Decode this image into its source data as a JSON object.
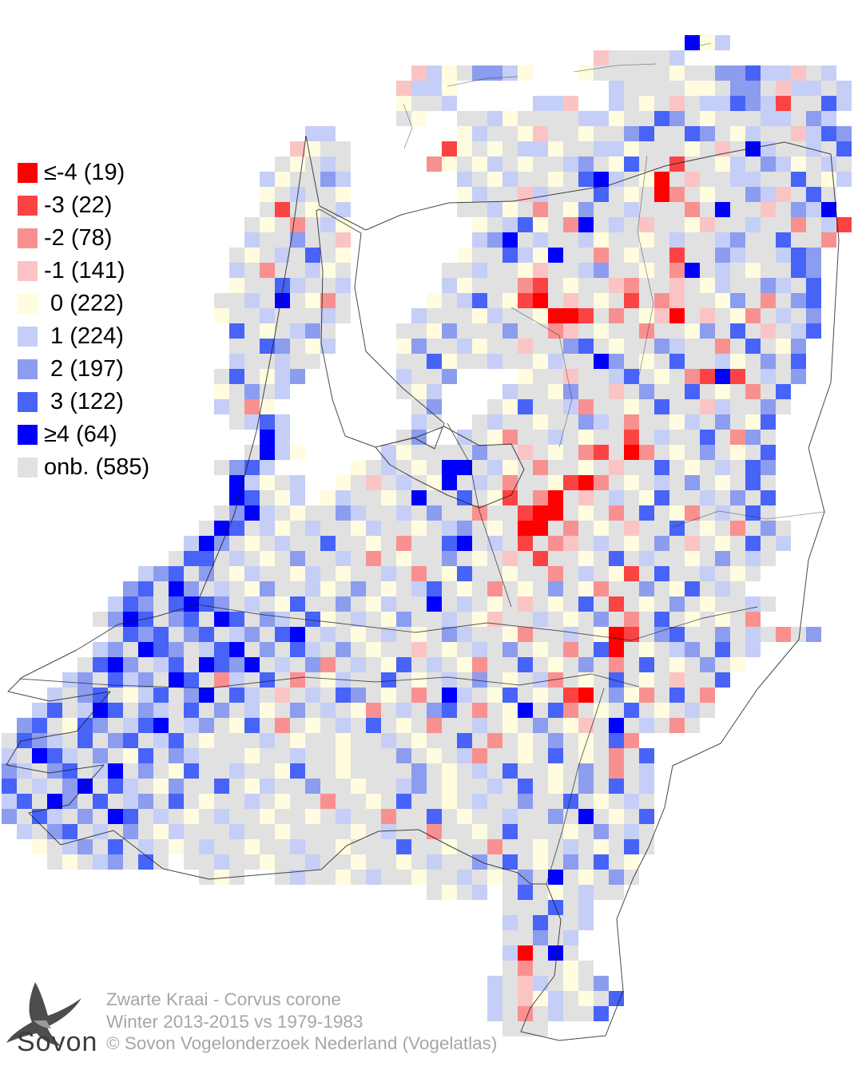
{
  "legend": {
    "items": [
      {
        "key": "R",
        "label": "≤-4 (19)",
        "color": "#FF0000"
      },
      {
        "key": "r",
        "label": "-3 (22)",
        "color": "#FB4343"
      },
      {
        "key": "q",
        "label": "-2 (78)",
        "color": "#F99090"
      },
      {
        "key": "p",
        "label": "-1 (141)",
        "color": "#FBC4C4"
      },
      {
        "key": "y",
        "label": " 0 (222)",
        "color": "#FFFCDF"
      },
      {
        "key": "c",
        "label": " 1 (224)",
        "color": "#C5CEF6"
      },
      {
        "key": "m",
        "label": " 2 (197)",
        "color": "#8C9CEF"
      },
      {
        "key": "b",
        "label": " 3 (122)",
        "color": "#4763F8"
      },
      {
        "key": "B",
        "label": "≥4 (64)",
        "color": "#0000FE"
      },
      {
        "key": "g",
        "label": "onb. (585)",
        "color": "#E1E1E1"
      }
    ]
  },
  "footer": {
    "logo_text": "Sovon",
    "line1": "Zwarte Kraai - Corvus corone",
    "line2": "Winter 2013-2015 vs 1979-1983",
    "line3": "© Sovon Vogelonderzoek Nederland (Vogelatlas)"
  },
  "map": {
    "grid": {
      "cell": 19,
      "ox": 2,
      "oy": 25,
      "rows": [
        [],
        [
          [
            45,
            "Byc"
          ]
        ],
        [
          [
            39,
            "pggggc"
          ]
        ],
        [
          [
            27,
            "pcygmmcy"
          ],
          [
            38,
            "ygggggyggmmbccpgc"
          ]
        ],
        [
          [
            26,
            "pccy"
          ],
          [
            40,
            "cggggyygmmgpccgc"
          ]
        ],
        [
          [
            26,
            "yggc"
          ],
          [
            35,
            "ccp"
          ],
          [
            40,
            "cgygpgccbmcrggbc"
          ]
        ],
        [
          [
            26,
            "gy"
          ],
          [
            30,
            "ggcyggggccyggbmgygggccgmc"
          ]
        ],
        [
          [
            20,
            "cc"
          ],
          [
            30,
            "ycggypggyggmbggbmgycggpcbm"
          ]
        ],
        [
          [
            19,
            "pygg"
          ],
          [
            29,
            "rygygccyggccygggygpgBcggcgb"
          ]
        ],
        [
          [
            18,
            "gygcg"
          ],
          [
            28,
            "qygycgyggcmgybggrggycgmcygcg"
          ]
        ],
        [
          [
            17,
            "cyggmc"
          ],
          [
            30,
            "cgycggygbBcgyRgpggccggbgyc"
          ]
        ],
        [
          [
            17,
            "ygcggy"
          ],
          [
            30,
            "ycggpcgggbgygRqgyggmcpgbg"
          ]
        ],
        [
          [
            17,
            "grgygc"
          ],
          [
            30,
            "ggcygqgymggcgggqgBggpgmcB"
          ]
        ],
        [
          [
            16,
            "gygqgcy"
          ],
          [
            31,
            "ygcbygqBgcgpggypggcggqgcr"
          ]
        ],
        [
          [
            16,
            "cggmggp"
          ],
          [
            31,
            "cmBgcggcyggygcggcmggbggq"
          ]
        ],
        [
          [
            15,
            "gygcgbgy"
          ],
          [
            30,
            "yggbcyBggqgyggrggmcggcbm"
          ]
        ],
        [
          [
            15,
            "cgqggcyg"
          ],
          [
            29,
            "ggc"
          ],
          [
            32,
            "ggypggcmggygqBgcgyggbm"
          ]
        ],
        [
          [
            15,
            "yggbcggc"
          ],
          [
            29,
            "cygg"
          ],
          [
            33,
            "gqrgyggpqggpgycggmcgb"
          ]
        ],
        [
          [
            14,
            "ggcgBgyqg"
          ],
          [
            28,
            "ygcb"
          ],
          [
            32,
            "gyrRgpgygrgqpggymgqgmb"
          ]
        ],
        [
          [
            14,
            "yggcgggcg"
          ],
          [
            27,
            "cgggy"
          ],
          [
            32,
            "cggyRRrgqgypRgpgyqgcgm"
          ]
        ],
        [
          [
            15,
            "bgygcmg"
          ],
          [
            26,
            "ggymggg"
          ],
          [
            33,
            "mggqpgyggqggymgbgpgcb"
          ]
        ],
        [
          [
            15,
            "ggbmgyc"
          ],
          [
            26,
            "ymggcygg"
          ],
          [
            34,
            "pggmbgyggmcggqgbgym"
          ]
        ],
        [
          [
            15,
            "cggcgg"
          ],
          [
            26,
            "ggbyggcg"
          ],
          [
            34,
            "gycggBmgygbggcygmgb"
          ]
        ],
        [
          [
            14,
            "gbgycm"
          ],
          [
            26,
            "cggm"
          ],
          [
            34,
            "yggpggcbgygqrBrgcgm"
          ]
        ],
        [
          [
            14,
            "ygmgc"
          ],
          [
            26,
            "gyc"
          ],
          [
            33,
            "cggymggpgmggbgygqgb"
          ]
        ],
        [
          [
            14,
            "cgqy"
          ],
          [
            27,
            "gm"
          ],
          [
            32,
            "gybggcqggygbggpcggmg"
          ]
        ],
        [
          [
            15,
            "gcbc"
          ],
          [
            27,
            "cg"
          ],
          [
            31,
            "gcggyggmcgqggycgmgyb"
          ]
        ],
        [
          [
            17,
            "Bc"
          ],
          [
            26,
            "gm"
          ],
          [
            30,
            "cgyqggcgyggrgcggbgqmg"
          ]
        ],
        [
          [
            16,
            "gBcy"
          ],
          [
            25,
            "cygg"
          ],
          [
            29,
            "ggmggpgygqrgRqgygmgygb"
          ]
        ],
        [
          [
            14,
            "gmbc"
          ],
          [
            23,
            "ygcgyg"
          ],
          [
            29,
            "BBgcygqggygpggbgygcgbm"
          ]
        ],
        [
          [
            15,
            "Bcygc"
          ],
          [
            22,
            "ygpgcgy"
          ],
          [
            29,
            "BgcgqggyrRqgygcgmgygbg"
          ]
        ],
        [
          [
            15,
            "Bbgyc"
          ],
          [
            21,
            "ycggygBggbgyrgqRgpgcgybggcgmgb"
          ]
        ],
        [
          [
            14,
            "gmBcgy"
          ],
          [
            20,
            "ggmcggcgmggqggrRRgygqgbgyqgcgbg"
          ]
        ],
        [
          [
            13,
            "gBbgcyg"
          ],
          [
            20,
            "cggycggygcmgygRRgqgygpggbgygqgmg"
          ]
        ],
        [
          [
            12,
            "cBmgyg"
          ],
          [
            18,
            "cggbggygqggbBgcgrgqpgcgygmgpgygbgc"
          ]
        ],
        [
          [
            11,
            "gbbgc"
          ],
          [
            16,
            "gygmggcgqgyggmgygpgrggygbgcggygmgcg"
          ]
        ],
        [
          [
            9,
            "cmbgm"
          ],
          [
            14,
            "gycggycgyggcgqgybggyggqgcgyrgbggcgyg"
          ]
        ],
        [
          [
            8,
            "mbgBm"
          ],
          [
            13,
            "gcgymggcygmgygcbgygqgygmgyqggmgybgcg"
          ]
        ],
        [
          [
            7,
            "cbmgbBbmgcgybggmgycggBgcgygpgygbgrgygmgyggcg"
          ]
        ],
        [
          [
            6,
            "gmBbgmbgBbgmcgbygcgymggcgypggcgygmgqgbgygygq"
          ]
        ],
        [
          [
            7,
            "gbmbgmbgcmgbBgcgygcgygmcggyqggcgyRrgmbggmgcgqgm"
          ]
        ],
        [
          [
            6,
            "cmgBbmgcbBgmgbcgmgyggpgygcgmgygqgbRgygcmgbgc"
          ]
        ],
        [
          [
            5,
            "gbBmgcbgBbmBgcgmqgcgybgcgyqggbgygmgqgbgygmgy"
          ]
        ],
        [
          [
            4,
            "cmgbcmgBbgqcgbgqgycggbgygcgmgygcqgygbgygpggb"
          ]
        ],
        [
          [
            3,
            "cgmbgycbgmBgbcgpgcgbmgygqgBcgybgygrRgmyqgbgq"
          ]
        ],
        [
          [
            2,
            "cbgcBbgmcgbgmgcygmgcgyqgcgmbgqgyBgbqgygbgygcg"
          ]
        ],
        [
          [
            1,
            "mbgybmgcbBgcmgybgqgygcgbgygqggcgygmgypgBgcgqg"
          ]
        ],
        [
          [
            0,
            "gbmcgbgmbgcbgygggcgyggyggcgyggbgqgygmgygbq"
          ]
        ],
        [
          [
            0,
            "cgBbcgmgybgmcgggyggcggygggmgygcqggygbgygqgb"
          ]
        ],
        [
          [
            0,
            "mcgmbgcBgmgybggcggybggyggggmgygcgbggygmgqgc"
          ]
        ],
        [
          [
            0,
            "bgcgmBgbcgymggbgycggmggyggcmgyggcgbgygmgbgc"
          ]
        ],
        [
          [
            0,
            "cbgBmgbgcmgbgyggcgyggqggygbggygcggmggbgygcg"
          ]
        ],
        [
          [
            0,
            "mgbcgmgBbgcgygcggyggygcggqggbgyggcggmgBgygb"
          ]
        ],
        [
          [
            1,
            "cgmbgcgmgycgggcggyggggygcggqggygbgggygmgcg"
          ]
        ],
        [
          [
            2,
            "ygcmgbgcgygcggyggcggygggbggyggqggygcgygbg"
          ]
        ],
        [
          [
            3,
            "gygcmgbg"
          ],
          [
            12,
            "ggcggyggcggyggygcggmgbgygmgbgy"
          ]
        ],
        [
          [
            13,
            "gyg"
          ],
          [
            18,
            "gcggygcggyggcgygmgBgygmg"
          ]
        ],
        [
          [
            28,
            "gygc"
          ],
          [
            33,
            "gbgygcgg"
          ]
        ],
        [
          [
            33,
            "gggbgc"
          ]
        ],
        [
          [
            33,
            "cgbggc"
          ]
        ],
        [
          [
            33,
            "ggmgc"
          ]
        ],
        [
          [
            33,
            "cRgBg"
          ]
        ],
        [
          [
            33,
            "gqggyg"
          ]
        ],
        [
          [
            32,
            "cgpcgygm"
          ]
        ],
        [
          [
            32,
            "cgpycgygb"
          ]
        ],
        [
          [
            32,
            "cgqgcggb"
          ]
        ],
        [
          [
            33,
            "ggg"
          ]
        ]
      ]
    }
  }
}
